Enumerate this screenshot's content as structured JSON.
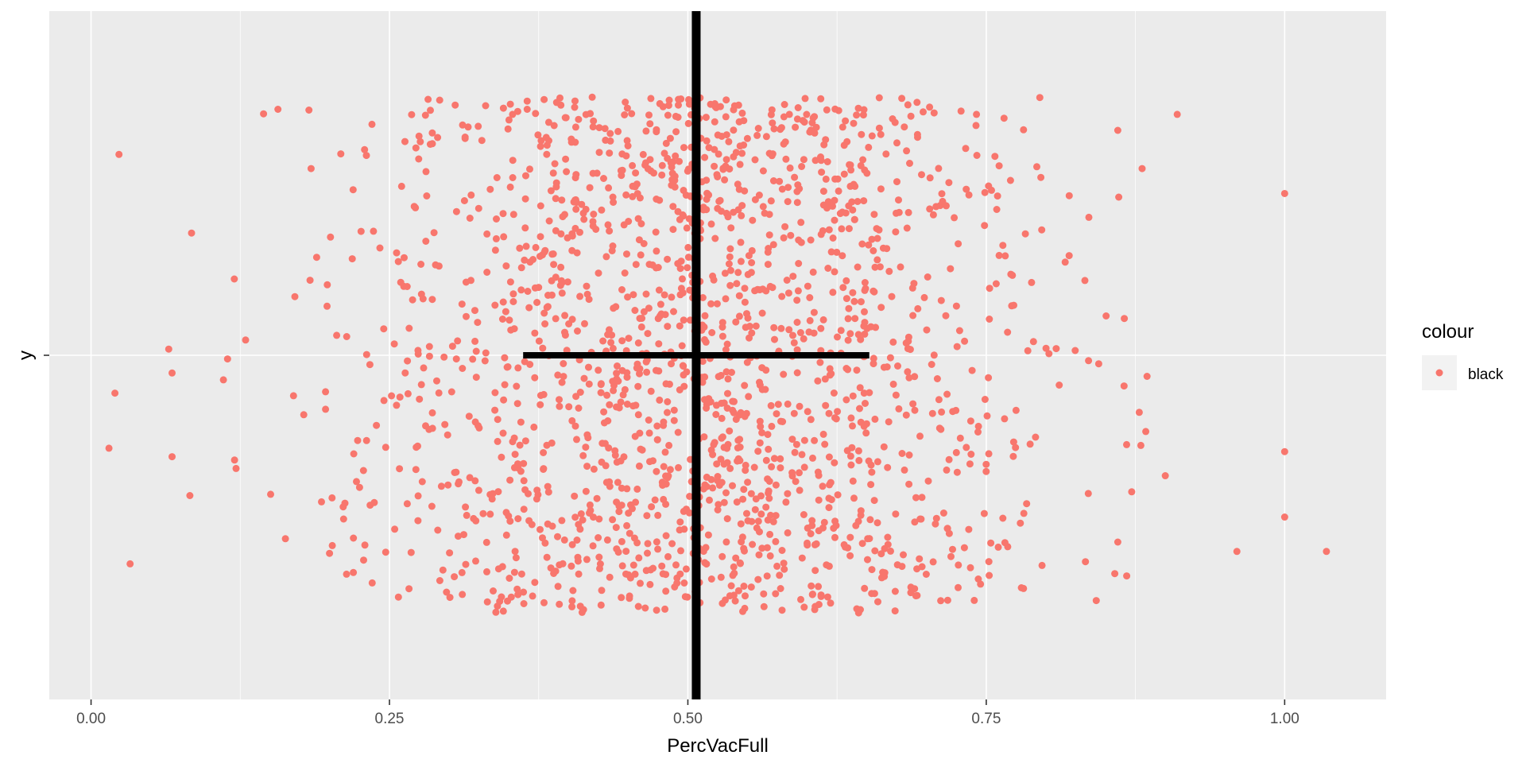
{
  "chart_data": {
    "type": "scatter",
    "title": "",
    "xlabel": "PercVacFull",
    "ylabel": "y",
    "xlim": [
      -0.035,
      1.085
    ],
    "ylim": [
      -1,
      1
    ],
    "x_ticks": [
      "0.00",
      "0.25",
      "0.50",
      "0.75",
      "1.00"
    ],
    "x_tick_values": [
      0,
      0.25,
      0.5,
      0.75,
      1.0
    ],
    "grid": true,
    "legend": {
      "title": "colour",
      "entries": [
        "black"
      ],
      "position": "right"
    },
    "series": [
      {
        "color": "#F8766D"
      }
    ],
    "point_count": 1800,
    "jitter_y_range": [
      -0.75,
      0.75
    ],
    "x_distribution": {
      "mean": 0.507,
      "sd": 0.145,
      "min": 0.015,
      "max": 1.035
    },
    "outliers": [
      {
        "x": 0.91,
        "y": 0.7
      },
      {
        "x": 1.0,
        "y": 0.47
      },
      {
        "x": 1.0,
        "y": -0.28
      },
      {
        "x": 1.0,
        "y": -0.47
      },
      {
        "x": 0.96,
        "y": -0.57
      },
      {
        "x": 1.035,
        "y": -0.57
      },
      {
        "x": 0.9,
        "y": -0.35
      },
      {
        "x": 0.02,
        "y": -0.11
      },
      {
        "x": 0.015,
        "y": -0.27
      }
    ],
    "crosshair": {
      "vertical_x": 0.507,
      "horizontal_y": 0,
      "horizontal_x_range": [
        0.362,
        0.652
      ],
      "color": "#000000"
    },
    "panel_background": "#EBEBEB",
    "grid_color": "#FFFFFF"
  }
}
